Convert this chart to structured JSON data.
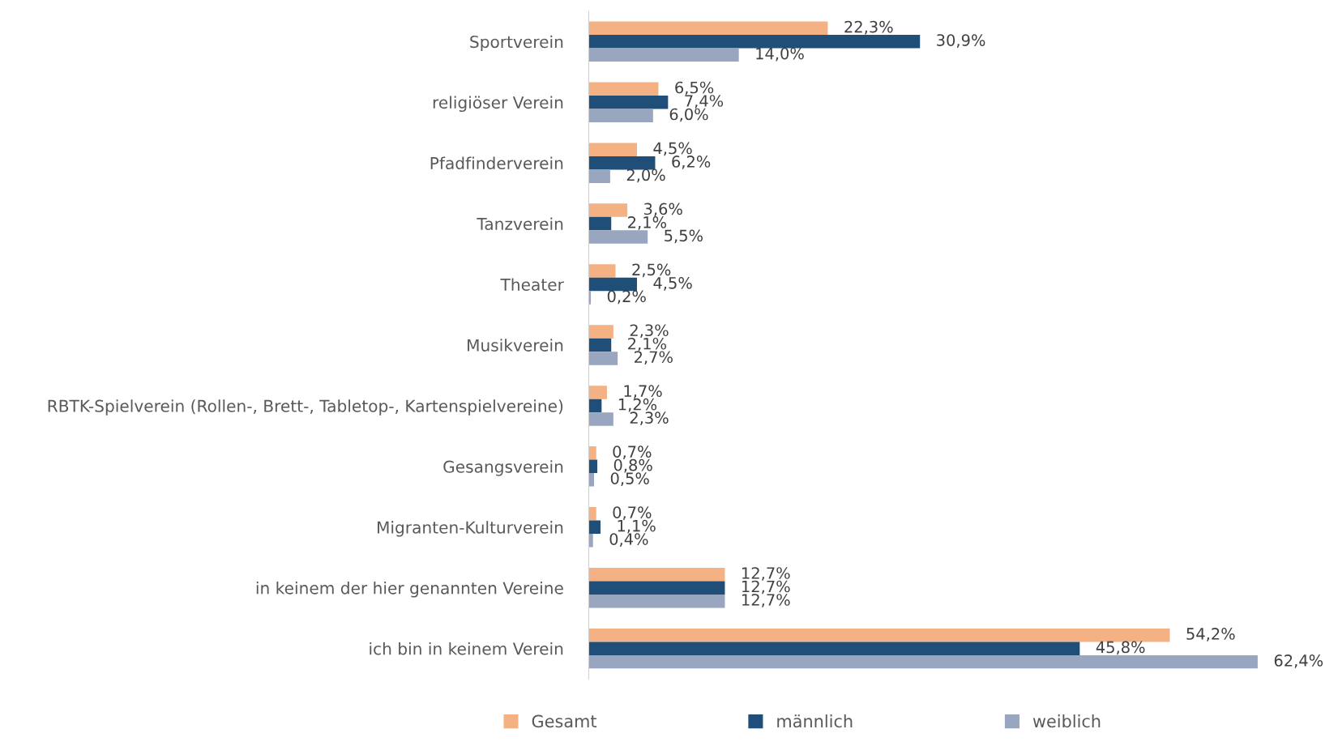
{
  "chart_data": {
    "type": "bar",
    "orientation": "horizontal",
    "categories": [
      "Sportverein",
      "religiöser Verein",
      "Pfadfinderverein",
      "Tanzverein",
      "Theater",
      "Musikverein",
      "RBTK-Spielverein (Rollen-, Brett-, Tabletop-, Kartenspielvereine)",
      "Gesangsverein",
      "Migranten-Kulturverein",
      "in keinem der hier genannten Vereine",
      "ich bin in keinem Verein"
    ],
    "series": [
      {
        "name": "Gesamt",
        "color": "#f4b183",
        "values": [
          22.3,
          6.5,
          4.5,
          3.6,
          2.5,
          2.3,
          1.7,
          0.7,
          0.7,
          12.7,
          54.2
        ],
        "value_labels": [
          "22,3%",
          "6,5%",
          "4,5%",
          "3,6%",
          "2,5%",
          "2,3%",
          "1,7%",
          "0,7%",
          "0,7%",
          "12,7%",
          "54,2%"
        ]
      },
      {
        "name": "männlich",
        "color": "#1f4e79",
        "values": [
          30.9,
          7.4,
          6.2,
          2.1,
          4.5,
          2.1,
          1.2,
          0.8,
          1.1,
          12.7,
          45.8
        ],
        "value_labels": [
          "30,9%",
          "7,4%",
          "6,2%",
          "2,1%",
          "4,5%",
          "2,1%",
          "1,2%",
          "0,8%",
          "1,1%",
          "12,7%",
          "45,8%"
        ]
      },
      {
        "name": "weiblich",
        "color": "#98a6c0",
        "values": [
          14.0,
          6.0,
          2.0,
          5.5,
          0.2,
          2.7,
          2.3,
          0.5,
          0.4,
          12.7,
          62.4
        ],
        "value_labels": [
          "14,0%",
          "6,0%",
          "2,0%",
          "5,5%",
          "0,2%",
          "2,7%",
          "2,3%",
          "0,5%",
          "0,4%",
          "12,7%",
          "62,4%"
        ]
      }
    ],
    "legend": "bottom",
    "grid": false
  }
}
